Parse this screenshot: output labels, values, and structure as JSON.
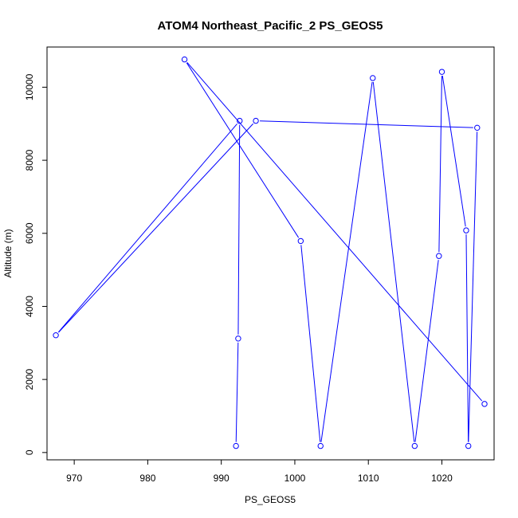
{
  "chart_data": {
    "type": "line",
    "title": "ATOM4 Northeast_Pacific_2 PS_GEOS5",
    "xlabel": "PS_GEOS5",
    "ylabel": "Altitude (m)",
    "xlim": [
      966.3,
      1027.1
    ],
    "ylim": [
      -200,
      11100
    ],
    "x_ticks": [
      970,
      980,
      990,
      1000,
      1010,
      1020
    ],
    "y_ticks": [
      0,
      2000,
      4000,
      6000,
      8000,
      10000
    ],
    "grid": false,
    "series": [
      {
        "color": "#0000ff",
        "marker": "open-circle",
        "x": [
          1025.8,
          985.0,
          1000.8,
          1003.5,
          1010.6,
          1016.3,
          1019.6,
          1020.0,
          1023.3,
          1023.6,
          1024.8,
          994.7,
          967.5,
          992.5,
          992.3,
          992.0
        ],
        "y": [
          1330,
          10760,
          5790,
          180,
          10250,
          180,
          5380,
          10420,
          6080,
          180,
          8890,
          9080,
          3210,
          9080,
          3120,
          180
        ]
      }
    ]
  }
}
